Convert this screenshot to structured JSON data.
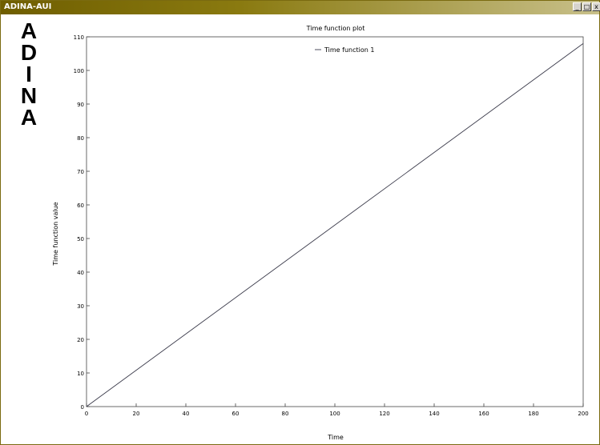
{
  "window": {
    "title": "ADINA-AUI",
    "buttons": {
      "minimize": "_",
      "maximize": "□",
      "close": "x"
    }
  },
  "logo": {
    "letters": [
      "A",
      "D",
      "I",
      "N",
      "A"
    ]
  },
  "chart_data": {
    "type": "line",
    "title": "Time function plot",
    "xlabel": "Time",
    "ylabel": "Time function value",
    "xlim": [
      0,
      200
    ],
    "ylim": [
      0,
      110
    ],
    "xticks": [
      0,
      20,
      40,
      60,
      80,
      100,
      120,
      140,
      160,
      180,
      200
    ],
    "yticks": [
      0,
      10,
      20,
      30,
      40,
      50,
      60,
      70,
      80,
      90,
      100,
      110
    ],
    "grid": false,
    "legend": "top-center",
    "series": [
      {
        "name": "Time function 1",
        "color": "#3a3a4a",
        "x": [
          0,
          200
        ],
        "y": [
          0,
          108
        ]
      }
    ]
  }
}
